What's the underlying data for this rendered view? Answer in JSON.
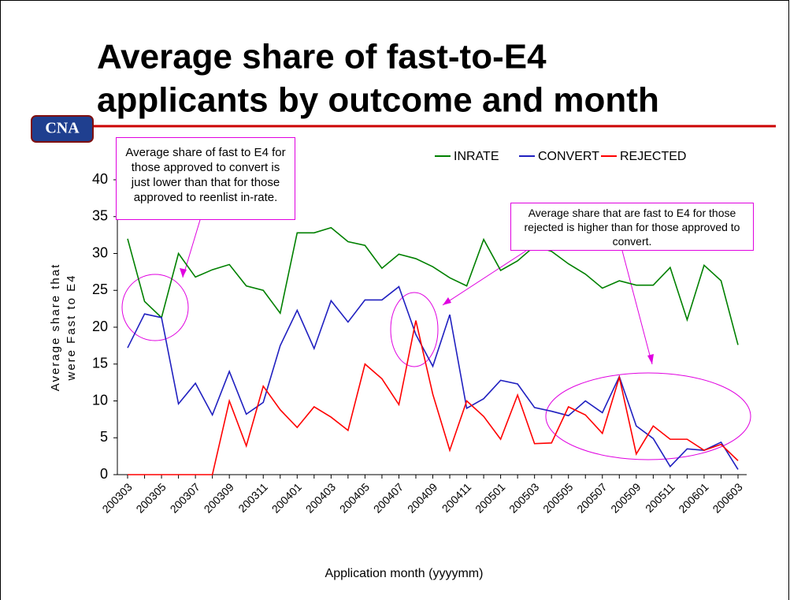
{
  "logo": "CNA",
  "chart_data": {
    "type": "line",
    "title": [
      "Average share of fast-to-E4",
      "applicants by outcome and month"
    ],
    "xlabel": "Application month (yyyymm)",
    "ylabel": [
      "Average share that",
      "were Fast to E4"
    ],
    "categories": [
      "200303",
      null,
      "200305",
      null,
      "200307",
      null,
      "200309",
      null,
      "200311",
      null,
      "200401",
      null,
      "200403",
      null,
      "200405",
      null,
      "200407",
      null,
      "200409",
      null,
      "200411",
      null,
      "200501",
      null,
      "200503",
      null,
      "200505",
      null,
      "200507",
      null,
      "200509",
      null,
      "200511",
      null,
      "200601",
      null,
      "200603"
    ],
    "ylim": [
      0,
      40
    ],
    "yticks": [
      0,
      5,
      10,
      15,
      20,
      25,
      30,
      35,
      40
    ],
    "series": [
      {
        "name": "INRATE",
        "color": "#008000",
        "values": [
          32,
          23.5,
          21.3,
          30,
          26.8,
          27.8,
          28.5,
          25.6,
          25,
          21.9,
          32.8,
          32.8,
          33.5,
          31.6,
          31.1,
          28,
          29.9,
          29.3,
          28.2,
          26.7,
          25.6,
          31.9,
          27.7,
          29,
          31,
          30.3,
          28.6,
          27.2,
          25.3,
          26.3,
          25.7,
          25.7,
          28.1,
          21,
          28.4,
          26.3,
          17.6
        ]
      },
      {
        "name": "CONVERT",
        "color": "#2020c0",
        "values": [
          17.2,
          21.8,
          21.3,
          9.6,
          12.4,
          8.1,
          14,
          8.2,
          9.8,
          17.5,
          22.3,
          17.1,
          23.6,
          20.7,
          23.7,
          23.7,
          25.5,
          19,
          14.7,
          21.7,
          9,
          10.3,
          12.8,
          12.3,
          9.1,
          8.6,
          8,
          10,
          8.4,
          13.3,
          6.6,
          4.9,
          1.1,
          3.5,
          3.3,
          4.4,
          0.7
        ]
      },
      {
        "name": "REJECTED",
        "color": "#ff0000",
        "values": [
          0,
          0,
          0,
          0,
          0,
          0,
          10,
          3.9,
          12,
          8.8,
          6.4,
          9.2,
          7.8,
          6,
          15,
          13,
          9.5,
          20.9,
          10.9,
          3.3,
          10,
          7.9,
          4.8,
          10.8,
          4.2,
          4.3,
          9.2,
          8.1,
          5.6,
          13.2,
          2.8,
          6.6,
          4.8,
          4.8,
          3.3,
          4.1,
          1.9
        ]
      }
    ],
    "annotations": [
      "Average share of fast to E4 for those approved to convert is just lower than that for those approved to reenlist in-rate.",
      "Average share that are fast to E4 for those rejected is higher than for those approved to convert."
    ]
  }
}
